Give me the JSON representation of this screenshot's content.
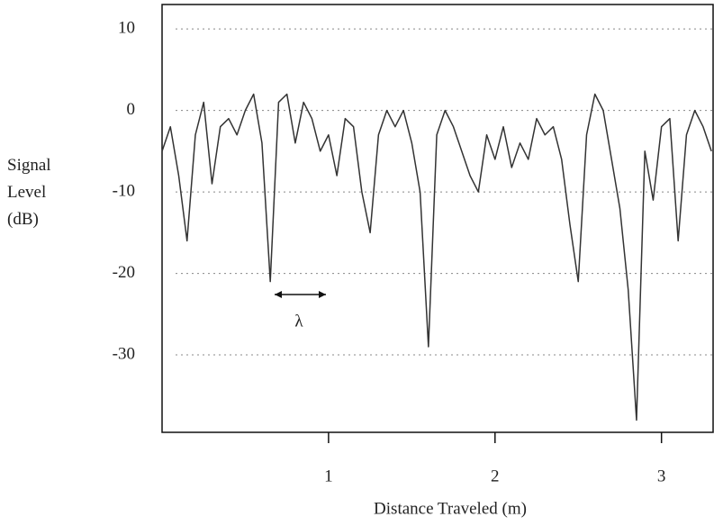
{
  "chart_data": {
    "type": "line",
    "x_label": "Distance Traveled (m)",
    "y_label": "Signal Level (dB)",
    "annotation": "λ",
    "x": [
      0,
      0.05,
      0.1,
      0.15,
      0.2,
      0.25,
      0.3,
      0.35,
      0.4,
      0.45,
      0.5,
      0.55,
      0.6,
      0.65,
      0.7,
      0.75,
      0.8,
      0.85,
      0.9,
      0.95,
      1.0,
      1.05,
      1.1,
      1.15,
      1.2,
      1.25,
      1.3,
      1.35,
      1.4,
      1.45,
      1.5,
      1.55,
      1.6,
      1.65,
      1.7,
      1.75,
      1.8,
      1.85,
      1.9,
      1.95,
      2.0,
      2.05,
      2.1,
      2.15,
      2.2,
      2.25,
      2.3,
      2.35,
      2.4,
      2.45,
      2.5,
      2.55,
      2.6,
      2.65,
      2.7,
      2.75,
      2.8,
      2.85,
      2.9,
      2.95,
      3.0,
      3.05,
      3.1,
      3.15,
      3.2,
      3.25,
      3.3
    ],
    "series": [
      {
        "color": "#333333",
        "values": [
          -5,
          -2,
          -8,
          -16,
          -3,
          1,
          -9,
          -2,
          -1,
          -3,
          0,
          2,
          -4,
          -21,
          1,
          2,
          -4,
          1,
          -1,
          -5,
          -3,
          -8,
          -1,
          -2,
          -10,
          -15,
          -3,
          0,
          -2,
          0,
          -4,
          -10,
          -29,
          -3,
          0,
          -2,
          -5,
          -8,
          -10,
          -3,
          -6,
          -2,
          -7,
          -4,
          -6,
          -1,
          -3,
          -2,
          -6,
          -14,
          -21,
          -3,
          2,
          0,
          -6,
          -12,
          -22,
          -38,
          -5,
          -11,
          -2,
          -1,
          -16,
          -3,
          0,
          -2,
          -5
        ]
      }
    ],
    "xlim": [
      0,
      3.31
    ],
    "ylim": [
      -39.5,
      13
    ],
    "xticks": [
      1,
      2,
      3
    ],
    "yticks": [
      10,
      0,
      -10,
      -20,
      -30
    ],
    "grid": true
  }
}
